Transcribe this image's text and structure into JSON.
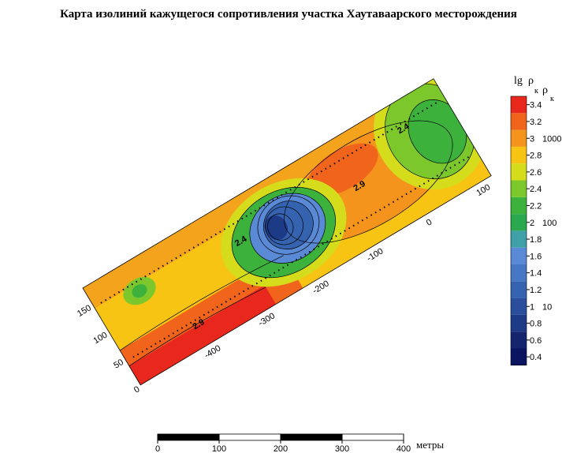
{
  "title": "Карта изолиний кажущегося сопротивления участка Хаутаваарского месторождения",
  "legend": {
    "lg": "lg",
    "rho": "ρ",
    "sub": "к",
    "ticks": [
      0.4,
      0.6,
      0.8,
      1,
      1.2,
      1.4,
      1.6,
      1.8,
      2,
      2.2,
      2.4,
      2.6,
      2.8,
      3,
      3.2,
      3.4
    ],
    "colors": [
      "#0a1460",
      "#14256e",
      "#1d3a86",
      "#2a4e9c",
      "#3563b0",
      "#4677c4",
      "#5a8ad6",
      "#3fa0a8",
      "#2aa84e",
      "#3cb23c",
      "#7cc82c",
      "#d4dc1c",
      "#f8c414",
      "#f4941c",
      "#f0641c",
      "#e8281c"
    ],
    "rho_ticks": [
      {
        "value": 1,
        "label": "10"
      },
      {
        "value": 2,
        "label": "100"
      },
      {
        "value": 3,
        "label": "1000"
      }
    ]
  },
  "map": {
    "side_ticks": [
      0,
      50,
      100,
      150
    ],
    "along_ticks": [
      -400,
      -300,
      -200,
      -100,
      0,
      100
    ],
    "contour_labels": [
      "2.9",
      "2.4",
      "2.9",
      "2.4"
    ]
  },
  "scale_bar": {
    "ticks": [
      0,
      100,
      200,
      300,
      400
    ],
    "unit": "метры"
  }
}
